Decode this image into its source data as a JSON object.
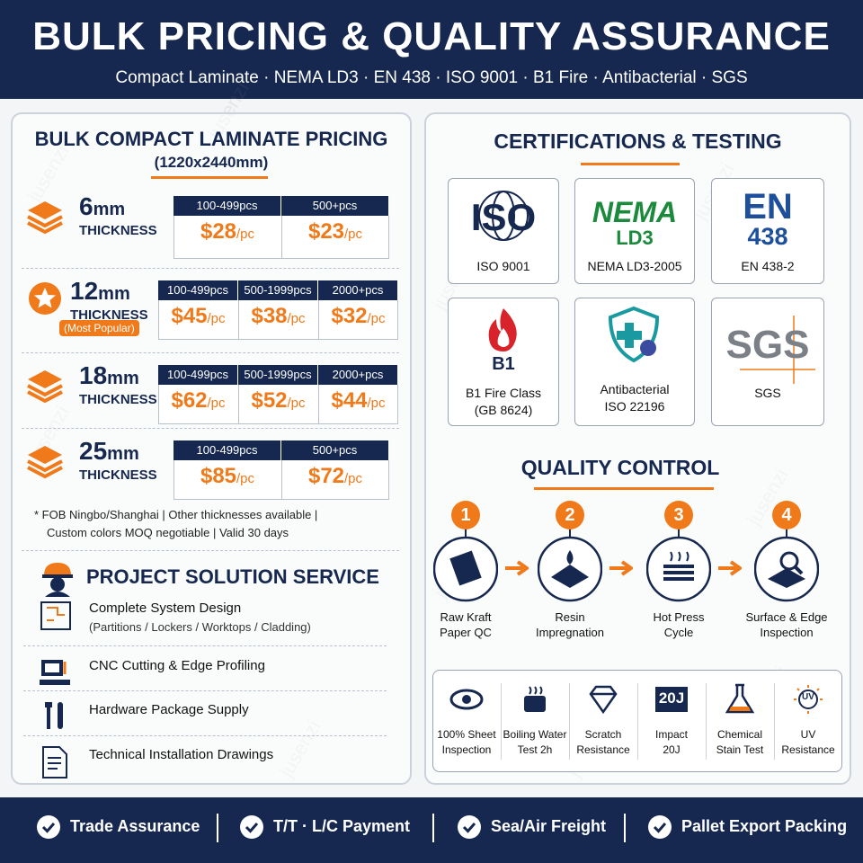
{
  "header": {
    "title": "BULK PRICING & QUALITY ASSURANCE",
    "subtitle": "Compact Laminate · NEMA LD3 · EN 438 · ISO 9001 · B1 Fire · Antibacterial · SGS"
  },
  "watermark": "jusenzi",
  "pricing": {
    "title": "BULK COMPACT LAMINATE PRICING",
    "size": "(1220x2440mm)",
    "rows": [
      {
        "thickness": "6",
        "unit": "mm",
        "label": "THICKNESS",
        "tiers": [
          {
            "qty": "100-499pcs",
            "price": "$28",
            "per": "/pc"
          },
          {
            "qty": "500+pcs",
            "price": "$23",
            "per": "/pc"
          }
        ]
      },
      {
        "thickness": "12",
        "unit": "mm",
        "label": "THICKNESS",
        "badge": "(Most Popular)",
        "tiers": [
          {
            "qty": "100-499pcs",
            "price": "$45",
            "per": "/pc"
          },
          {
            "qty": "500-1999pcs",
            "price": "$38",
            "per": "/pc"
          },
          {
            "qty": "2000+pcs",
            "price": "$32",
            "per": "/pc"
          }
        ]
      },
      {
        "thickness": "18",
        "unit": "mm",
        "label": "THICKNESS",
        "tiers": [
          {
            "qty": "100-499pcs",
            "price": "$62",
            "per": "/pc"
          },
          {
            "qty": "500-1999pcs",
            "price": "$52",
            "per": "/pc"
          },
          {
            "qty": "2000+pcs",
            "price": "$44",
            "per": "/pc"
          }
        ]
      },
      {
        "thickness": "25",
        "unit": "mm",
        "label": "THICKNESS",
        "tiers": [
          {
            "qty": "100-499pcs",
            "price": "$85",
            "per": "/pc"
          },
          {
            "qty": "500+pcs",
            "price": "$72",
            "per": "/pc"
          }
        ]
      }
    ],
    "notes": [
      "* FOB Ningbo/Shanghai | Other thicknesses available |",
      "Custom colors MOQ negotiable | Valid 30 days"
    ]
  },
  "services": {
    "title": "PROJECT SOLUTION SERVICE",
    "items": [
      {
        "label": "Complete System Design",
        "detail": "(Partitions / Lockers / Worktops / Cladding)"
      },
      {
        "label": "CNC Cutting & Edge Profiling"
      },
      {
        "label": "Hardware Package Supply"
      },
      {
        "label": "Technical Installation Drawings"
      }
    ]
  },
  "certifications": {
    "title": "CERTIFICATIONS & TESTING",
    "items": [
      {
        "logo": [
          "ISO"
        ],
        "caption": [
          "ISO 9001"
        ]
      },
      {
        "logo": [
          "NEMA",
          "LD3"
        ],
        "caption": [
          "NEMA LD3-2005"
        ]
      },
      {
        "logo": [
          "EN",
          "438"
        ],
        "caption": [
          "EN 438-2"
        ]
      },
      {
        "logo": [
          "B1"
        ],
        "caption": [
          "B1 Fire Class",
          "(GB 8624)"
        ]
      },
      {
        "logo": [],
        "caption": [
          "Antibacterial",
          "ISO 22196"
        ]
      },
      {
        "logo": [
          "SGS"
        ],
        "caption": [
          "SGS"
        ]
      }
    ]
  },
  "quality_control": {
    "title": "QUALITY CONTROL",
    "steps": [
      {
        "number": "1",
        "label": [
          "Raw Kraft",
          "Paper QC"
        ]
      },
      {
        "number": "2",
        "label": [
          "Resin",
          "Impregnation"
        ]
      },
      {
        "number": "3",
        "label": [
          "Hot Press",
          "Cycle"
        ]
      },
      {
        "number": "4",
        "label": [
          "Surface & Edge",
          "Inspection"
        ]
      }
    ],
    "tests": [
      {
        "label": [
          "100% Sheet",
          "Inspection"
        ]
      },
      {
        "label": [
          "Boiling Water",
          "Test 2h"
        ]
      },
      {
        "label": [
          "Scratch",
          "Resistance"
        ]
      },
      {
        "icon": "20J",
        "label": [
          "Impact",
          "20J"
        ]
      },
      {
        "label": [
          "Chemical",
          "Stain Test"
        ]
      },
      {
        "icon": "UV",
        "label": [
          "UV",
          "Resistance"
        ]
      }
    ]
  },
  "footer": {
    "items": [
      "Trade Assurance",
      "T/T · L/C Payment",
      "Sea/Air Freight",
      "Pallet Export Packing"
    ]
  }
}
